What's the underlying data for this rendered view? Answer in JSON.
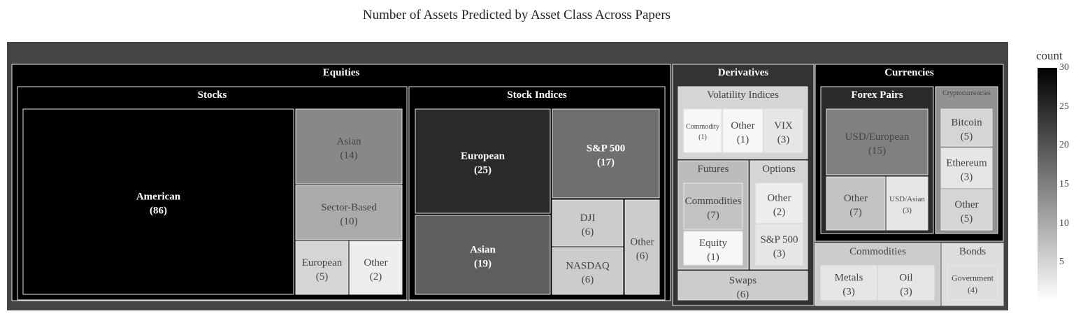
{
  "chart_data": {
    "type": "treemap",
    "title": "Number of Assets Predicted by Asset Class Across Papers",
    "colorbar": {
      "title": "count",
      "range": [
        0,
        30
      ],
      "ticks": [
        5,
        10,
        15,
        20,
        25,
        30
      ]
    },
    "tree": [
      {
        "name": "Equities",
        "children": [
          {
            "name": "Stocks",
            "children": [
              {
                "name": "American",
                "value": 86
              },
              {
                "name": "Asian",
                "value": 14
              },
              {
                "name": "Sector-Based",
                "value": 10
              },
              {
                "name": "European",
                "value": 5
              },
              {
                "name": "Other",
                "value": 2
              }
            ]
          },
          {
            "name": "Stock Indices",
            "children": [
              {
                "name": "European",
                "value": 25
              },
              {
                "name": "Asian",
                "value": 19
              },
              {
                "name": "S&P 500",
                "value": 17
              },
              {
                "name": "DJI",
                "value": 6
              },
              {
                "name": "NASDAQ",
                "value": 6
              },
              {
                "name": "Other",
                "value": 6
              }
            ]
          }
        ]
      },
      {
        "name": "Derivatives",
        "children": [
          {
            "name": "Volatility Indices",
            "children": [
              {
                "name": "Commodity",
                "value": 1
              },
              {
                "name": "Other",
                "value": 1
              },
              {
                "name": "VIX",
                "value": 3
              }
            ]
          },
          {
            "name": "Futures",
            "children": [
              {
                "name": "Commodities",
                "value": 7
              },
              {
                "name": "Equity",
                "value": 1
              }
            ]
          },
          {
            "name": "Options",
            "children": [
              {
                "name": "Other",
                "value": 2
              },
              {
                "name": "S&P 500",
                "value": 3
              }
            ]
          },
          {
            "name": "Swaps",
            "value": 6
          }
        ]
      },
      {
        "name": "Currencies",
        "children": [
          {
            "name": "Forex Pairs",
            "children": [
              {
                "name": "USD/European",
                "value": 15
              },
              {
                "name": "Other",
                "value": 7
              },
              {
                "name": "USD/Asian",
                "value": 3
              }
            ]
          },
          {
            "name": "Cryptocurrencies",
            "children": [
              {
                "name": "Bitcoin",
                "value": 5
              },
              {
                "name": "Ethereum",
                "value": 3
              },
              {
                "name": "Other",
                "value": 5
              }
            ]
          }
        ]
      },
      {
        "name": "Commodities",
        "children": [
          {
            "name": "Metals",
            "value": 3
          },
          {
            "name": "Oil",
            "value": 3
          }
        ]
      },
      {
        "name": "Bonds",
        "children": [
          {
            "name": "Government",
            "value": 4
          }
        ]
      }
    ]
  }
}
